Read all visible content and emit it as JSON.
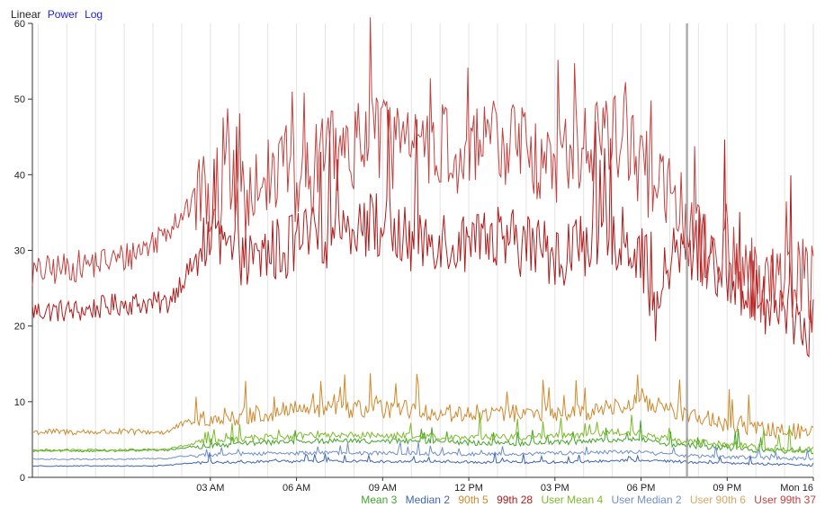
{
  "scale_options": [
    {
      "label": "Linear",
      "active": true
    },
    {
      "label": "Power",
      "active": false
    },
    {
      "label": "Log",
      "active": false
    }
  ],
  "legend": [
    {
      "label": "Mean 3",
      "color": "#43a52c"
    },
    {
      "label": "Median 2",
      "color": "#3f66b0"
    },
    {
      "label": "90th 5",
      "color": "#cf8a2e"
    },
    {
      "label": "99th 28",
      "color": "#b11b1b"
    },
    {
      "label": "User Mean 4",
      "color": "#7cba2a"
    },
    {
      "label": "User Median 2",
      "color": "#6f8fcb"
    },
    {
      "label": "User 90th 6",
      "color": "#dba665"
    },
    {
      "label": "User 99th 37",
      "color": "#c3413f"
    }
  ],
  "chart_data": {
    "type": "line",
    "x_ticks": [
      "03 AM",
      "06 AM",
      "09 AM",
      "12 PM",
      "03 PM",
      "06 PM",
      "09 PM",
      "Mon 16"
    ],
    "y_ticks": [
      0,
      10,
      20,
      30,
      40,
      50,
      60
    ],
    "ylim": [
      0,
      60
    ],
    "x_range_hours": [
      -3.2,
      24
    ],
    "grid": "vertical",
    "series": [
      {
        "name": "99th",
        "color": "#b11b1b",
        "x": [
          -3.2,
          -1.5,
          0,
          1,
          1.5,
          2,
          3,
          4,
          4.5,
          5,
          5.5,
          6,
          7,
          8,
          9,
          10,
          11,
          12,
          13,
          14,
          15,
          16,
          17,
          18,
          18.5,
          19,
          20,
          21,
          22,
          23,
          24
        ],
        "values": [
          22,
          22,
          23,
          23,
          23,
          26,
          31,
          29,
          28,
          30,
          30,
          31,
          32,
          34,
          33,
          31,
          32,
          30,
          31,
          31,
          29,
          31,
          32,
          30,
          21,
          29,
          30,
          27,
          24,
          22,
          20
        ]
      },
      {
        "name": "User 99th",
        "color": "#c3413f",
        "x": [
          -3.2,
          -1.5,
          0,
          1,
          1.5,
          2,
          3,
          4,
          4.5,
          5,
          5.5,
          6,
          7,
          8,
          9,
          10,
          11,
          12,
          13,
          14,
          15,
          16,
          17,
          18,
          18.5,
          19,
          20,
          21,
          22,
          23,
          24
        ],
        "values": [
          27,
          28,
          29,
          31,
          33,
          35,
          38,
          38,
          36,
          40,
          42,
          39,
          42,
          44,
          45,
          42,
          44,
          42,
          45,
          43,
          41,
          44,
          46,
          41,
          39,
          37,
          31,
          28,
          26,
          27,
          25
        ]
      },
      {
        "name": "90th",
        "color": "#cf8a2e",
        "x": [
          -3.2,
          0,
          1,
          1.5,
          2,
          3,
          4,
          5,
          6,
          7,
          8,
          9,
          10,
          11,
          12,
          13,
          14,
          15,
          16,
          17,
          18,
          19,
          20,
          21,
          22,
          23,
          24
        ],
        "values": [
          6,
          6,
          6,
          6,
          7,
          8,
          8,
          8.5,
          9,
          9,
          9,
          9,
          9,
          8.5,
          8.5,
          8.5,
          8.5,
          8.5,
          8.5,
          9.5,
          10,
          9,
          8,
          7,
          6.5,
          6,
          6
        ]
      },
      {
        "name": "Mean",
        "color": "#43a52c",
        "x": [
          -3.2,
          0,
          1,
          1.5,
          2,
          3,
          4,
          5,
          6,
          7,
          8,
          9,
          10,
          11,
          12,
          13,
          14,
          15,
          16,
          17,
          18,
          19,
          20,
          21,
          22,
          23,
          24
        ],
        "values": [
          3.5,
          3.5,
          3.6,
          3.6,
          3.9,
          4.2,
          4.4,
          4.6,
          4.7,
          4.8,
          4.8,
          4.8,
          4.8,
          4.7,
          4.6,
          4.5,
          4.5,
          4.6,
          4.7,
          5,
          5,
          4.3,
          4.1,
          3.9,
          3.6,
          3.5,
          3.4
        ]
      },
      {
        "name": "User Mean",
        "color": "#7cba2a",
        "x": [
          -3.2,
          0,
          1,
          1.5,
          2,
          3,
          4,
          5,
          6,
          7,
          8,
          9,
          10,
          11,
          12,
          13,
          14,
          15,
          16,
          17,
          18,
          19,
          20,
          21,
          22,
          23,
          24
        ],
        "values": [
          3.6,
          3.6,
          3.7,
          3.7,
          4.1,
          4.8,
          5,
          5.3,
          5.5,
          5.6,
          5.6,
          5.5,
          5.6,
          5.4,
          5.3,
          5.3,
          5.3,
          5.4,
          5.6,
          6,
          5.8,
          5,
          4.6,
          4.3,
          4,
          3.8,
          3.7
        ]
      },
      {
        "name": "Median",
        "color": "#3f66b0",
        "x": [
          -3.2,
          0,
          1,
          1.5,
          2,
          3,
          4,
          5,
          6,
          7,
          8,
          9,
          10,
          11,
          12,
          13,
          14,
          15,
          16,
          17,
          18,
          19,
          20,
          21,
          22,
          23,
          24
        ],
        "values": [
          1.5,
          1.5,
          1.5,
          1.6,
          1.8,
          2,
          2,
          2.1,
          2.1,
          2.1,
          2.1,
          2.1,
          2.1,
          2.1,
          2,
          2,
          2,
          2,
          2.1,
          2.2,
          2.2,
          2.1,
          2,
          1.9,
          1.8,
          1.7,
          1.6
        ]
      },
      {
        "name": "User Median",
        "color": "#6f8fcb",
        "x": [
          -3.2,
          0,
          1,
          1.5,
          2,
          3,
          4,
          5,
          6,
          7,
          8,
          9,
          10,
          11,
          12,
          13,
          14,
          15,
          16,
          17,
          18,
          19,
          20,
          21,
          22,
          23,
          24
        ],
        "values": [
          2.4,
          2.4,
          2.5,
          2.5,
          2.8,
          3,
          3.1,
          3.2,
          3.2,
          3.2,
          3.2,
          3.2,
          3.2,
          3.1,
          3.1,
          3.1,
          3.1,
          3.2,
          3.2,
          3.4,
          3.3,
          3,
          2.8,
          2.7,
          2.6,
          2.5,
          2.4
        ]
      }
    ]
  }
}
